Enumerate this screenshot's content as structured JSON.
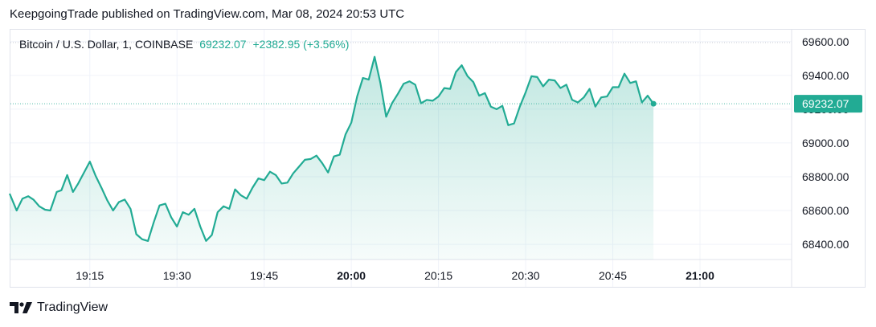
{
  "header": {
    "publish_text": "KeepgoingTrade published on TradingView.com, Mar 08, 2024 20:53 UTC"
  },
  "legend": {
    "symbol": "Bitcoin / U.S. Dollar, 1, COINBASE",
    "price": "69232.07",
    "change": "+2382.95 (+3.56%)"
  },
  "footer": {
    "brand": "TradingView",
    "logo_icon": "tradingview-logo-icon"
  },
  "colors": {
    "line": "#22ab94",
    "price_tag": "#22ab94",
    "text": "#131722",
    "axis_text": "#131722"
  },
  "chart_data": {
    "type": "area",
    "title": "Bitcoin / U.S. Dollar, 1, COINBASE",
    "last_price_label": "69232.07",
    "y_ticks": [
      "69600.00",
      "69400.00",
      "69200.00",
      "69000.00",
      "68800.00",
      "68600.00",
      "68400.00"
    ],
    "y_tick_values": [
      69600,
      69400,
      69200,
      69000,
      68800,
      68600,
      68400
    ],
    "x_ticks": [
      "19:15",
      "19:30",
      "19:45",
      "20:00",
      "20:15",
      "20:30",
      "20:45",
      "21:00"
    ],
    "x_tick_minutes": [
      1155,
      1170,
      1185,
      1200,
      1215,
      1230,
      1245,
      1260
    ],
    "x_range_minutes": [
      1141.2,
      1276.6
    ],
    "ylim": [
      68310,
      69675
    ],
    "grid": true,
    "series": [
      {
        "x": [
          1141.2,
          1142.4,
          1143.4,
          1144.4,
          1145.3,
          1146.3,
          1147.3,
          1148.2,
          1149.3,
          1150.1,
          1151.1,
          1152.1,
          1153.0,
          1155.0,
          1156.0,
          1157.0,
          1158.0,
          1159.0,
          1160.0,
          1161.0,
          1162.0,
          1163.0,
          1164.0,
          1165.0,
          1166.0,
          1167.0,
          1168.0,
          1169.0,
          1170.0,
          1171.0,
          1172.0,
          1173.0,
          1174.0,
          1175.0,
          1176.0,
          1177.0,
          1178.0,
          1179.0,
          1180.0,
          1181.0,
          1182.0,
          1183.0,
          1184.0,
          1185.0,
          1186.0,
          1187.0,
          1188.0,
          1189.0,
          1190.0,
          1191.0,
          1192.0,
          1193.0,
          1194.0,
          1195.0,
          1196.0,
          1197.0,
          1198.0,
          1199.0,
          1200.0,
          1201.0,
          1202.0,
          1203.0,
          1204.0,
          1205.0,
          1206.0,
          1207.0,
          1208.0,
          1209.0,
          1210.0,
          1211.0,
          1212.0,
          1213.0,
          1214.0,
          1215.0,
          1216.0,
          1217.0,
          1218.0,
          1219.0,
          1220.0,
          1221.0,
          1222.0,
          1223.0,
          1224.0,
          1225.0,
          1226.0,
          1227.0,
          1228.0,
          1229.0,
          1230.0,
          1231.0,
          1232.0,
          1233.0,
          1234.0,
          1235.0,
          1236.0,
          1237.0,
          1238.0,
          1239.0,
          1240.0,
          1241.0,
          1242.0,
          1243.0,
          1244.0,
          1245.0,
          1246.0,
          1247.0,
          1248.0,
          1249.0,
          1250.0,
          1251.0,
          1252.0
        ],
        "y": [
          68700,
          68600,
          68670,
          68685,
          68665,
          68625,
          68605,
          68600,
          68710,
          68720,
          68810,
          68710,
          68760,
          68890,
          68805,
          68735,
          68660,
          68600,
          68650,
          68665,
          68610,
          68460,
          68430,
          68420,
          68530,
          68630,
          68640,
          68560,
          68505,
          68590,
          68575,
          68610,
          68505,
          68420,
          68455,
          68590,
          68625,
          68610,
          68725,
          68690,
          68670,
          68735,
          68790,
          68780,
          68830,
          68810,
          68760,
          68765,
          68820,
          68860,
          68900,
          68905,
          68925,
          68880,
          68825,
          68920,
          68930,
          69050,
          69120,
          69275,
          69385,
          69375,
          69510,
          69355,
          69155,
          69235,
          69290,
          69350,
          69365,
          69345,
          69235,
          69255,
          69250,
          69275,
          69325,
          69320,
          69420,
          69460,
          69395,
          69360,
          69280,
          69295,
          69215,
          69200,
          69220,
          69105,
          69115,
          69215,
          69300,
          69395,
          69390,
          69335,
          69375,
          69370,
          69325,
          69345,
          69255,
          69240,
          69270,
          69320,
          69215,
          69270,
          69275,
          69330,
          69330,
          69410,
          69355,
          69365,
          69240,
          69280,
          69232
        ]
      }
    ]
  }
}
